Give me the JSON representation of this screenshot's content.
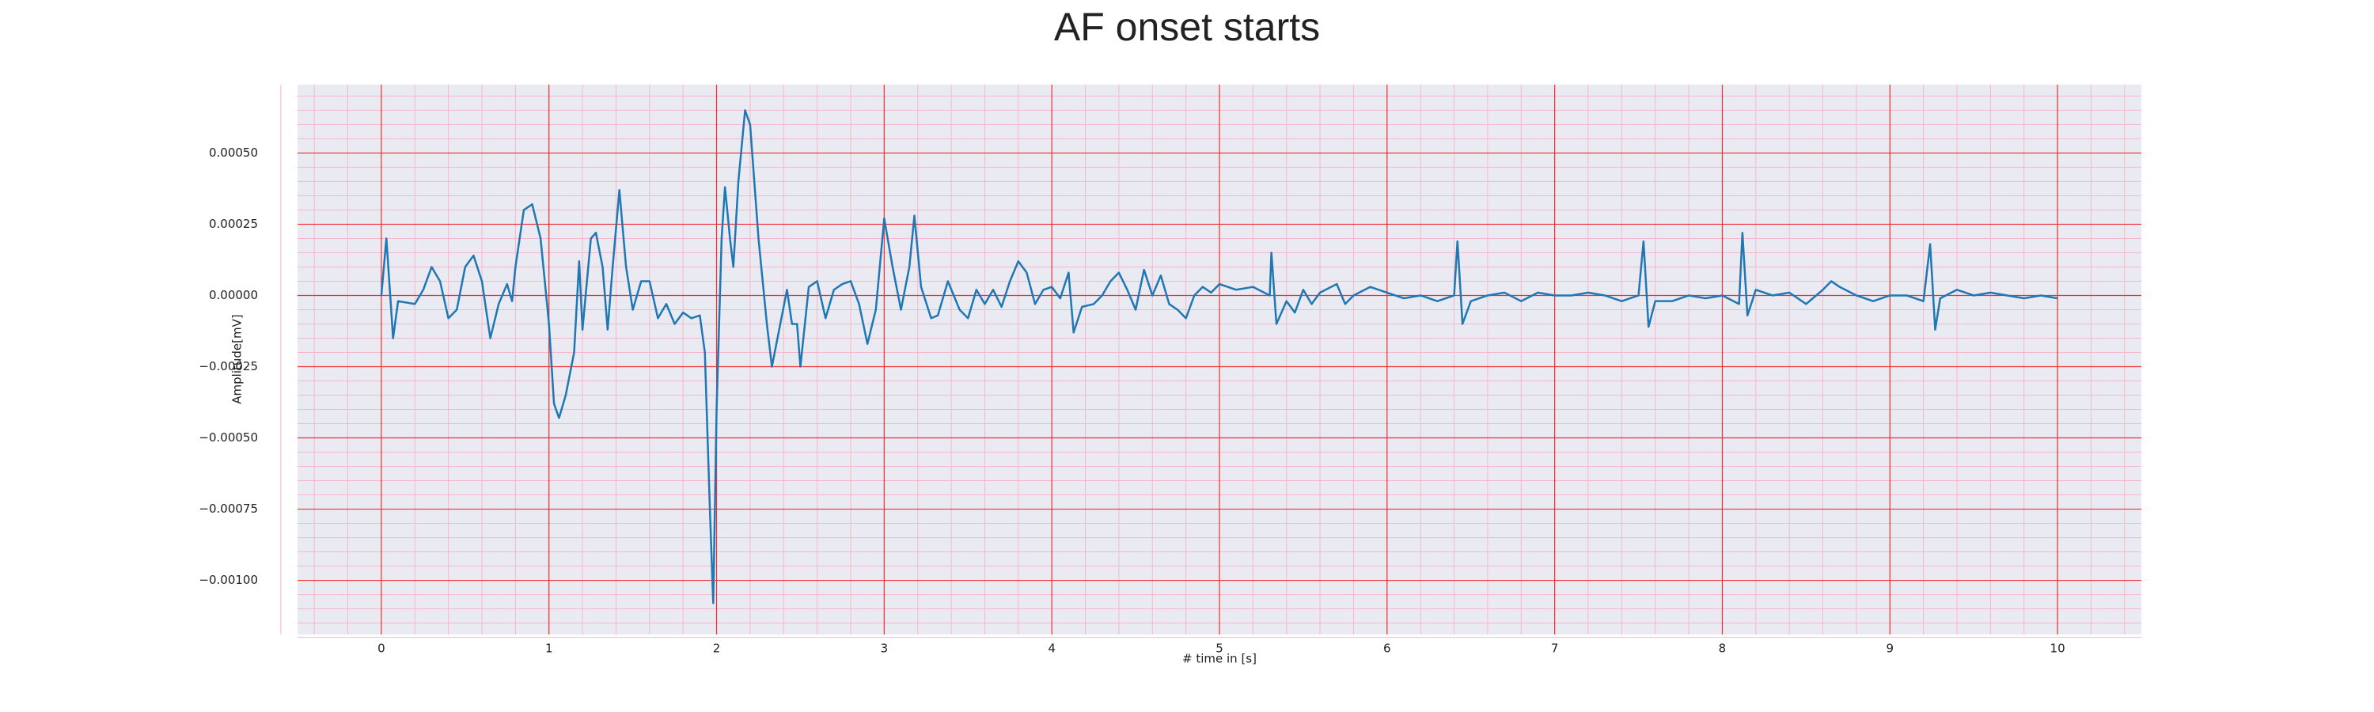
{
  "chart_data": {
    "type": "line",
    "title": "AF onset starts",
    "xlabel": "# time in [s]",
    "ylabel": "Amplitude[mV]",
    "color": "#1f77b4",
    "grid": true,
    "xlim": [
      -0.5,
      10.5
    ],
    "xticks": [
      0,
      1,
      2,
      3,
      4,
      5,
      6,
      7,
      8,
      9,
      10
    ],
    "ylim": [
      -0.00119,
      0.00074
    ],
    "yticks": [
      {
        "value": -0.001,
        "label": "−0.00100"
      },
      {
        "value": -0.00075,
        "label": "−0.00075"
      },
      {
        "value": -0.0005,
        "label": "−0.00050"
      },
      {
        "value": -0.00025,
        "label": "−0.00025"
      },
      {
        "value": 0,
        "label": "0.00000"
      },
      {
        "value": 0.00025,
        "label": "0.00025"
      },
      {
        "value": 0.0005,
        "label": "0.00050"
      }
    ],
    "x": [
      0,
      0.03,
      0.07,
      0.1,
      0.2,
      0.25,
      0.3,
      0.35,
      0.4,
      0.45,
      0.5,
      0.55,
      0.6,
      0.65,
      0.7,
      0.75,
      0.78,
      0.8,
      0.85,
      0.9,
      0.95,
      1.0,
      1.03,
      1.06,
      1.1,
      1.15,
      1.18,
      1.2,
      1.25,
      1.28,
      1.32,
      1.35,
      1.38,
      1.42,
      1.46,
      1.5,
      1.55,
      1.6,
      1.65,
      1.7,
      1.75,
      1.8,
      1.85,
      1.9,
      1.93,
      1.96,
      1.98,
      2.0,
      2.03,
      2.05,
      2.08,
      2.1,
      2.13,
      2.17,
      2.2,
      2.25,
      2.3,
      2.33,
      2.38,
      2.42,
      2.45,
      2.48,
      2.5,
      2.55,
      2.6,
      2.65,
      2.7,
      2.75,
      2.8,
      2.85,
      2.9,
      2.95,
      3.0,
      3.05,
      3.1,
      3.15,
      3.18,
      3.22,
      3.28,
      3.32,
      3.38,
      3.45,
      3.5,
      3.55,
      3.6,
      3.65,
      3.7,
      3.75,
      3.8,
      3.85,
      3.9,
      3.95,
      4.0,
      4.05,
      4.1,
      4.13,
      4.18,
      4.25,
      4.3,
      4.35,
      4.4,
      4.45,
      4.5,
      4.55,
      4.6,
      4.65,
      4.7,
      4.75,
      4.8,
      4.85,
      4.9,
      4.95,
      5.0,
      5.1,
      5.2,
      5.3,
      5.31,
      5.34,
      5.4,
      5.45,
      5.5,
      5.55,
      5.6,
      5.7,
      5.75,
      5.8,
      5.9,
      6.0,
      6.1,
      6.2,
      6.3,
      6.4,
      6.42,
      6.45,
      6.5,
      6.6,
      6.7,
      6.8,
      6.9,
      7.0,
      7.1,
      7.2,
      7.3,
      7.4,
      7.5,
      7.53,
      7.56,
      7.6,
      7.7,
      7.8,
      7.9,
      8.0,
      8.1,
      8.12,
      8.15,
      8.2,
      8.3,
      8.4,
      8.5,
      8.6,
      8.65,
      8.7,
      8.8,
      8.9,
      9.0,
      9.1,
      9.2,
      9.24,
      9.27,
      9.3,
      9.4,
      9.5,
      9.6,
      9.7,
      9.8,
      9.9,
      10.0
    ],
    "values": [
      0,
      0.0002,
      -0.00015,
      -2e-05,
      -3e-05,
      2e-05,
      0.0001,
      5e-05,
      -8e-05,
      -5e-05,
      0.0001,
      0.00014,
      5e-05,
      -0.00015,
      -3e-05,
      4e-05,
      -2e-05,
      0.0001,
      0.0003,
      0.00032,
      0.0002,
      -0.0001,
      -0.00038,
      -0.00043,
      -0.00035,
      -0.0002,
      0.00012,
      -0.00012,
      0.0002,
      0.00022,
      0.0001,
      -0.00012,
      0.0001,
      0.00037,
      0.0001,
      -5e-05,
      5e-05,
      5e-05,
      -8e-05,
      -3e-05,
      -0.0001,
      -6e-05,
      -8e-05,
      -7e-05,
      -0.0002,
      -0.00075,
      -0.00108,
      -0.0004,
      0.0002,
      0.00038,
      0.0002,
      0.0001,
      0.0004,
      0.00065,
      0.0006,
      0.0002,
      -0.0001,
      -0.00025,
      -0.0001,
      2e-05,
      -0.0001,
      -0.0001,
      -0.00025,
      3e-05,
      5e-05,
      -8e-05,
      2e-05,
      4e-05,
      5e-05,
      -3e-05,
      -0.00017,
      -5e-05,
      0.00027,
      0.0001,
      -5e-05,
      0.0001,
      0.00028,
      3e-05,
      -8e-05,
      -7e-05,
      5e-05,
      -5e-05,
      -8e-05,
      2e-05,
      -3e-05,
      2e-05,
      -4e-05,
      5e-05,
      0.00012,
      8e-05,
      -3e-05,
      2e-05,
      3e-05,
      -1e-05,
      8e-05,
      -0.00013,
      -4e-05,
      -3e-05,
      0,
      5e-05,
      8e-05,
      2e-05,
      -5e-05,
      9e-05,
      0,
      7e-05,
      -3e-05,
      -5e-05,
      -8e-05,
      0,
      3e-05,
      1e-05,
      4e-05,
      2e-05,
      3e-05,
      0,
      0.00015,
      -0.0001,
      -2e-05,
      -6e-05,
      2e-05,
      -3e-05,
      1e-05,
      4e-05,
      -3e-05,
      0,
      3e-05,
      1e-05,
      -1e-05,
      0,
      -2e-05,
      0,
      0.00019,
      -0.0001,
      -2e-05,
      0,
      1e-05,
      -2e-05,
      1e-05,
      0,
      0,
      1e-05,
      0,
      -2e-05,
      0,
      0.00019,
      -0.00011,
      -2e-05,
      -2e-05,
      0,
      -1e-05,
      0,
      -3e-05,
      0.00022,
      -7e-05,
      2e-05,
      0,
      1e-05,
      -3e-05,
      2e-05,
      5e-05,
      3e-05,
      0,
      -2e-05,
      0,
      0,
      -2e-05,
      0.00018,
      -0.00012,
      -1e-05,
      2e-05,
      0,
      1e-05,
      0,
      -1e-05,
      0,
      -1e-05
    ]
  }
}
